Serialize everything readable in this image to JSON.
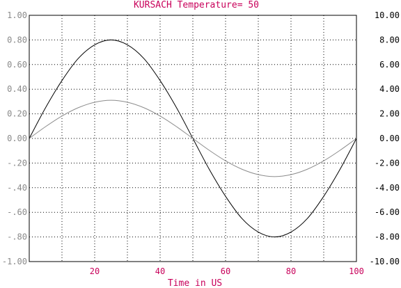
{
  "chart_data": {
    "type": "line",
    "title": "KURSACH Temperature= 50",
    "xlabel": "Time in US",
    "xlim": [
      0,
      100
    ],
    "x_ticks": [
      "20",
      "40",
      "60",
      "80",
      "100"
    ],
    "y_left_lim": [
      -1.0,
      1.0
    ],
    "y_left_ticks": [
      "1.00",
      "0.80",
      "0.60",
      "0.40",
      "0.20",
      "0.00",
      "-.20",
      "-.40",
      "-.60",
      "-.80",
      "-1.00"
    ],
    "y_right_lim": [
      -10.0,
      10.0
    ],
    "y_right_ticks": [
      "10.00",
      "8.00",
      "6.00",
      "4.00",
      "2.00",
      "0.00",
      "-2.00",
      "-4.00",
      "-6.00",
      "-8.00",
      "-10.00"
    ],
    "grid": true,
    "series": [
      {
        "axis": "left",
        "color": "#000000",
        "x": [
          0,
          5,
          10,
          15,
          20,
          25,
          30,
          35,
          40,
          45,
          50,
          55,
          60,
          65,
          70,
          75,
          80,
          85,
          90,
          95,
          100
        ],
        "y": [
          0.0,
          0.25,
          0.47,
          0.65,
          0.76,
          0.8,
          0.76,
          0.65,
          0.47,
          0.25,
          0.0,
          -0.25,
          -0.47,
          -0.65,
          -0.76,
          -0.8,
          -0.76,
          -0.65,
          -0.47,
          -0.25,
          0.0
        ]
      },
      {
        "axis": "right",
        "color": "#8c8c8c",
        "x": [
          0,
          5,
          10,
          15,
          20,
          25,
          30,
          35,
          40,
          45,
          50,
          55,
          60,
          65,
          70,
          75,
          80,
          85,
          90,
          95,
          100
        ],
        "y": [
          0.0,
          0.96,
          1.82,
          2.5,
          2.94,
          3.1,
          2.94,
          2.5,
          1.82,
          0.96,
          0.0,
          -0.96,
          -1.82,
          -2.5,
          -2.94,
          -3.1,
          -2.94,
          -2.5,
          -1.82,
          -0.96,
          0.0
        ]
      }
    ]
  }
}
